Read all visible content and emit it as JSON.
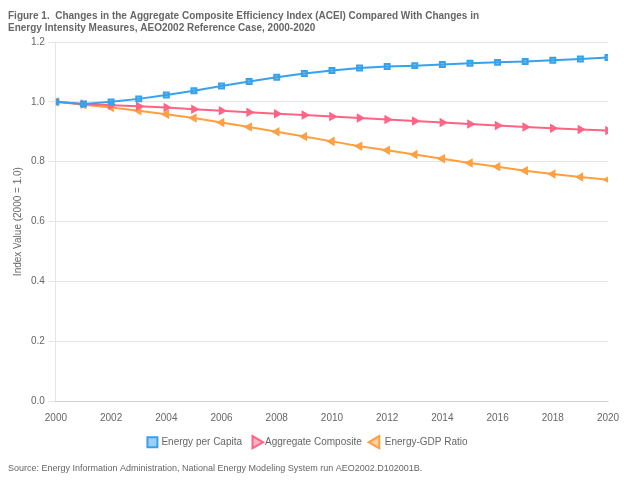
{
  "chart_data": {
    "type": "line",
    "title": [
      "Figure 1.  Changes in the Aggregate Composite Efficiency Index (ACEI) Compared With Changes in",
      "Energy Intensity Measures, AEO2002 Reference Case, 2000-2020"
    ],
    "y_label": "Index Value (2000 = 1.0)",
    "source": "Source: Energy Information Administration, National Energy Modeling System run AEO2002.D102001B.",
    "x": [
      2000,
      2001,
      2002,
      2003,
      2004,
      2005,
      2006,
      2007,
      2008,
      2009,
      2010,
      2011,
      2012,
      2013,
      2014,
      2015,
      2016,
      2017,
      2018,
      2019,
      2020
    ],
    "series": [
      {
        "name": "Energy per Capita",
        "marker": "square",
        "values": [
          1.0,
          0.993,
          1.0,
          1.01,
          1.023,
          1.037,
          1.053,
          1.068,
          1.082,
          1.095,
          1.105,
          1.113,
          1.118,
          1.121,
          1.125,
          1.129,
          1.132,
          1.135,
          1.139,
          1.143,
          1.148
        ]
      },
      {
        "name": "Aggregate Composite",
        "marker": "triangle-right",
        "values": [
          1.0,
          0.993,
          0.989,
          0.985,
          0.981,
          0.975,
          0.97,
          0.965,
          0.96,
          0.956,
          0.951,
          0.946,
          0.941,
          0.936,
          0.931,
          0.926,
          0.921,
          0.916,
          0.912,
          0.908,
          0.904
        ]
      },
      {
        "name": "Energy-GDP Ratio",
        "marker": "triangle-left",
        "values": [
          1.0,
          0.99,
          0.981,
          0.97,
          0.959,
          0.946,
          0.931,
          0.916,
          0.9,
          0.884,
          0.868,
          0.852,
          0.838,
          0.824,
          0.81,
          0.796,
          0.783,
          0.77,
          0.759,
          0.749,
          0.74
        ]
      }
    ],
    "xlim": [
      2000,
      2020
    ],
    "xticks": [
      2000,
      2002,
      2004,
      2006,
      2008,
      2010,
      2012,
      2014,
      2016,
      2018,
      2020
    ],
    "ylim": [
      0.0,
      1.2
    ],
    "yticks": [
      {
        "value": 0.0,
        "label": "0.0"
      },
      0.2,
      0.4,
      0.6,
      0.8,
      {
        "value": 1.0,
        "label": "1.0"
      },
      1.2
    ],
    "grid": "y",
    "legend": "bottom"
  }
}
